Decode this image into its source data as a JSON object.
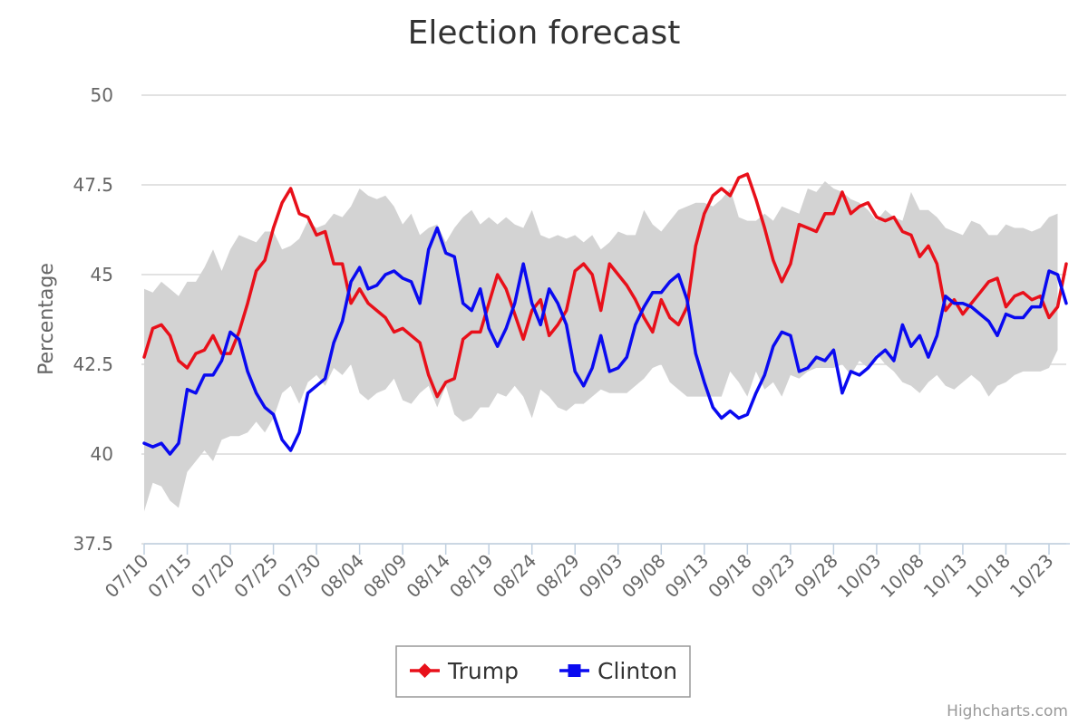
{
  "chart_data": {
    "type": "line",
    "title": "Election forecast",
    "ylabel": "Percentage",
    "xlabel": "",
    "ylim": [
      37.5,
      50
    ],
    "yticks": [
      37.5,
      40,
      42.5,
      45,
      47.5,
      50
    ],
    "yticklabels": [
      "37.5",
      "40",
      "42.5",
      "45",
      "47.5",
      "50"
    ],
    "xticklabels": [
      "07/10",
      "07/15",
      "07/20",
      "07/25",
      "07/30",
      "08/04",
      "08/09",
      "08/14",
      "08/19",
      "08/24",
      "08/29",
      "09/03",
      "09/08",
      "09/13",
      "09/18",
      "09/23",
      "09/28",
      "10/03",
      "10/08",
      "10/13",
      "10/18",
      "10/23"
    ],
    "x_start": "07/10",
    "grid": true,
    "legend_position": "bottom",
    "range_band": {
      "color": "#d3d3d3",
      "low": [
        38.4,
        39.2,
        39.1,
        38.7,
        38.5,
        39.5,
        39.8,
        40.1,
        39.8,
        40.4,
        40.5,
        40.5,
        40.6,
        40.9,
        40.6,
        41.0,
        41.7,
        41.9,
        41.4,
        42.0,
        42.2,
        41.9,
        42.4,
        42.2,
        42.5,
        41.7,
        41.5,
        41.7,
        41.8,
        42.1,
        41.5,
        41.4,
        41.7,
        41.9,
        41.3,
        41.9,
        41.1,
        40.9,
        41.0,
        41.3,
        41.3,
        41.7,
        41.6,
        41.9,
        41.6,
        41.0,
        41.8,
        41.6,
        41.3,
        41.2,
        41.4,
        41.4,
        41.6,
        41.8,
        41.7,
        41.7,
        41.7,
        41.9,
        42.1,
        42.4,
        42.5,
        42.0,
        41.8,
        41.6,
        41.6,
        41.6,
        41.6,
        41.6,
        42.3,
        42.0,
        41.6,
        42.3,
        41.8,
        42.0,
        41.6,
        42.2,
        42.1,
        42.3,
        42.4,
        42.4,
        42.4,
        42.5,
        42.2,
        42.6,
        42.4,
        42.8,
        42.5,
        42.3,
        42.0,
        41.9,
        41.7,
        42.0,
        42.2,
        41.9,
        41.8,
        42.0,
        42.2,
        42.0,
        41.6,
        41.9,
        42.0,
        42.2,
        42.3,
        42.3,
        42.3,
        42.4,
        42.9
      ],
      "high": [
        44.6,
        44.5,
        44.8,
        44.6,
        44.4,
        44.8,
        44.8,
        45.2,
        45.7,
        45.1,
        45.7,
        46.1,
        46.0,
        45.9,
        46.2,
        46.2,
        45.7,
        45.8,
        46.0,
        46.5,
        46.3,
        46.4,
        46.7,
        46.6,
        46.9,
        47.4,
        47.2,
        47.1,
        47.2,
        46.9,
        46.4,
        46.7,
        46.1,
        46.3,
        46.4,
        45.9,
        46.3,
        46.6,
        46.8,
        46.4,
        46.6,
        46.4,
        46.6,
        46.4,
        46.3,
        46.8,
        46.1,
        46.0,
        46.1,
        46.0,
        46.1,
        45.9,
        46.1,
        45.7,
        45.9,
        46.2,
        46.1,
        46.1,
        46.8,
        46.4,
        46.2,
        46.5,
        46.8,
        46.9,
        47.0,
        47.0,
        46.9,
        47.1,
        47.4,
        46.6,
        46.5,
        46.5,
        46.7,
        46.5,
        46.9,
        46.8,
        46.7,
        47.4,
        47.3,
        47.6,
        47.4,
        47.3,
        47.1,
        47.0,
        46.8,
        46.5,
        46.8,
        46.6,
        46.5,
        47.3,
        46.8,
        46.8,
        46.6,
        46.3,
        46.2,
        46.1,
        46.5,
        46.4,
        46.1,
        46.1,
        46.4,
        46.3,
        46.3,
        46.2,
        46.3,
        46.6,
        46.7
      ]
    },
    "series": [
      {
        "name": "Trump",
        "color": "#e8101a",
        "marker": "diamond",
        "values": [
          42.7,
          43.5,
          43.6,
          43.3,
          42.6,
          42.4,
          42.8,
          42.9,
          43.3,
          42.8,
          42.8,
          43.4,
          44.2,
          45.1,
          45.4,
          46.3,
          47.0,
          47.4,
          46.7,
          46.6,
          46.1,
          46.2,
          45.3,
          45.3,
          44.2,
          44.6,
          44.2,
          44.0,
          43.8,
          43.4,
          43.5,
          43.3,
          43.1,
          42.2,
          41.6,
          42.0,
          42.1,
          43.2,
          43.4,
          43.4,
          44.2,
          45.0,
          44.6,
          43.9,
          43.2,
          44.0,
          44.3,
          43.3,
          43.6,
          44.0,
          45.1,
          45.3,
          45.0,
          44.0,
          45.3,
          45.0,
          44.7,
          44.3,
          43.8,
          43.4,
          44.3,
          43.8,
          43.6,
          44.1,
          45.8,
          46.7,
          47.2,
          47.4,
          47.2,
          47.7,
          47.8,
          47.1,
          46.3,
          45.4,
          44.8,
          45.3,
          46.4,
          46.3,
          46.2,
          46.7,
          46.7,
          47.3,
          46.7,
          46.9,
          47.0,
          46.6,
          46.5,
          46.6,
          46.2,
          46.1,
          45.5,
          45.8,
          45.3,
          44.0,
          44.3,
          43.9,
          44.2,
          44.5,
          44.8,
          44.9,
          44.1,
          44.4,
          44.5,
          44.3,
          44.4,
          43.8,
          44.1,
          45.3
        ]
      },
      {
        "name": "Clinton",
        "color": "#0a0af0",
        "marker": "square",
        "values": [
          40.3,
          40.2,
          40.3,
          40.0,
          40.3,
          41.8,
          41.7,
          42.2,
          42.2,
          42.6,
          43.4,
          43.2,
          42.3,
          41.7,
          41.3,
          41.1,
          40.4,
          40.1,
          40.6,
          41.7,
          41.9,
          42.1,
          43.1,
          43.7,
          44.8,
          45.2,
          44.6,
          44.7,
          45.0,
          45.1,
          44.9,
          44.8,
          44.2,
          45.7,
          46.3,
          45.6,
          45.5,
          44.2,
          44.0,
          44.6,
          43.5,
          43.0,
          43.5,
          44.2,
          45.3,
          44.2,
          43.6,
          44.6,
          44.2,
          43.6,
          42.3,
          41.9,
          42.4,
          43.3,
          42.3,
          42.4,
          42.7,
          43.6,
          44.1,
          44.5,
          44.5,
          44.8,
          45.0,
          44.3,
          42.8,
          42.0,
          41.3,
          41.0,
          41.2,
          41.0,
          41.1,
          41.7,
          42.2,
          43.0,
          43.4,
          43.3,
          42.3,
          42.4,
          42.7,
          42.6,
          42.9,
          41.7,
          42.3,
          42.2,
          42.4,
          42.7,
          42.9,
          42.6,
          43.6,
          43.0,
          43.3,
          42.7,
          43.3,
          44.4,
          44.2,
          44.2,
          44.1,
          43.9,
          43.7,
          43.3,
          43.9,
          43.8,
          43.8,
          44.1,
          44.1,
          45.1,
          45.0,
          44.2
        ]
      }
    ]
  },
  "credits": "Highcharts.com"
}
